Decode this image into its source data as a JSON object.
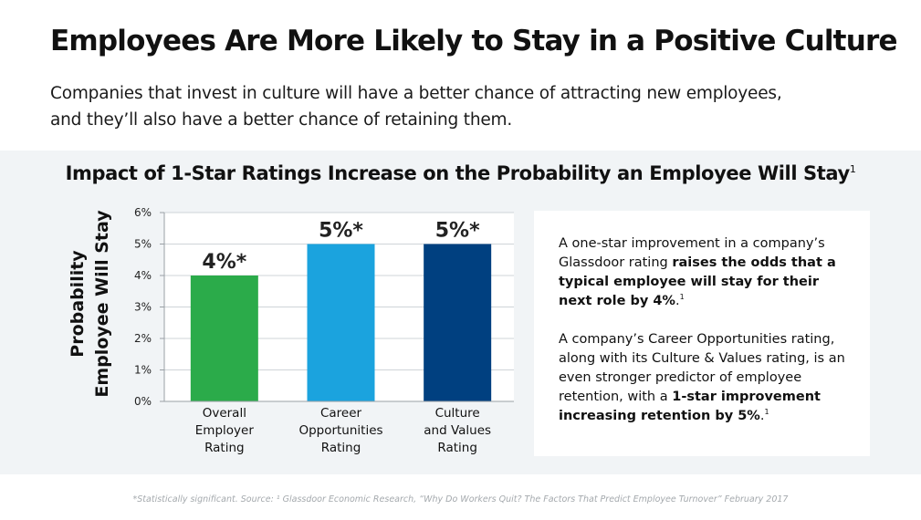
{
  "header": {
    "title": "Employees Are More Likely to Stay in a Positive Culture",
    "subtitle_line1": "Companies that invest in culture will have a better chance of attracting new employees,",
    "subtitle_line2": "and they’ll also have a better chance of retaining them."
  },
  "chart_data": {
    "type": "bar",
    "title": "Impact of 1-Star Ratings Increase on the Probability an Employee Will Stay",
    "title_superscript": "1",
    "ylabel_line1": "Probability",
    "ylabel_line2": "Employee Will Stay",
    "ylim": [
      0,
      6
    ],
    "ytick_values": [
      0,
      1,
      2,
      3,
      4,
      5,
      6
    ],
    "ytick_labels": [
      "0%",
      "1%",
      "2%",
      "3%",
      "4%",
      "5%",
      "6%"
    ],
    "categories": [
      [
        "Overall",
        "Employer",
        "Rating"
      ],
      [
        "Career",
        "Opportunities",
        "Rating"
      ],
      [
        "Culture",
        "and Values",
        "Rating"
      ]
    ],
    "values": [
      4,
      5,
      5
    ],
    "data_labels": [
      "4%*",
      "5%*",
      "5%*"
    ],
    "colors": [
      "#2bab4a",
      "#1ba3de",
      "#004080"
    ],
    "gridlines": true
  },
  "info": {
    "p1_text1": " A one-star improvement in a company’s Glassdoor rating ",
    "p1_bold": "raises the odds that a typical employee will stay for their next role by 4%",
    "p1_text2": ".",
    "p1_sup": "1",
    "p2_text1": "A company’s Career Opportunities rating, along with its Culture & Values rating, is an even stronger predictor of employee retention, with a ",
    "p2_bold": "1-star improvement increasing retention by 5%",
    "p2_text2": ".",
    "p2_sup": "1"
  },
  "footer": {
    "footnote": "*Statistically significant. Source: ¹ Glassdoor Economic Research, “Why Do Workers Quit? The Factors That Predict Employee Turnover” February 2017"
  }
}
